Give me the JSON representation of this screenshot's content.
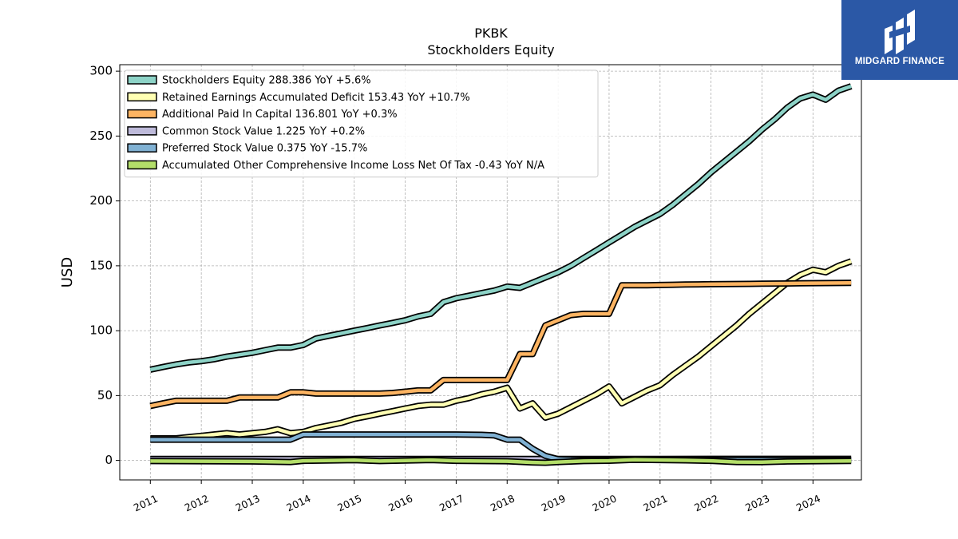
{
  "brand": {
    "name": "MIDGARD FINANCE"
  },
  "chart_data": {
    "type": "line",
    "title": "PKBK",
    "subtitle": "Stockholders  Equity",
    "ylabel": "USD",
    "xlabel": "",
    "ylim": [
      -15,
      305
    ],
    "xlim": [
      2010.4,
      2024.95
    ],
    "yticks": [
      0,
      50,
      100,
      150,
      200,
      250,
      300
    ],
    "xticks": [
      2011,
      2012,
      2013,
      2014,
      2015,
      2016,
      2017,
      2018,
      2019,
      2020,
      2021,
      2022,
      2023,
      2024
    ],
    "grid": true,
    "legend_position": "top-left",
    "series": [
      {
        "name": "Stockholders Equity  288.386 YoY +5.6%",
        "color": "#8dd3c7",
        "points": [
          [
            2011,
            70
          ],
          [
            2011.25,
            72
          ],
          [
            2011.5,
            74
          ],
          [
            2011.75,
            75.5
          ],
          [
            2012,
            76.5
          ],
          [
            2012.25,
            78
          ],
          [
            2012.5,
            80
          ],
          [
            2012.75,
            81.5
          ],
          [
            2013,
            83
          ],
          [
            2013.25,
            85
          ],
          [
            2013.5,
            87
          ],
          [
            2013.75,
            87
          ],
          [
            2014,
            89
          ],
          [
            2014.25,
            94
          ],
          [
            2014.5,
            96
          ],
          [
            2014.75,
            98
          ],
          [
            2015,
            100
          ],
          [
            2015.25,
            102
          ],
          [
            2015.5,
            104
          ],
          [
            2015.75,
            106
          ],
          [
            2016,
            108
          ],
          [
            2016.25,
            111
          ],
          [
            2016.5,
            113
          ],
          [
            2016.75,
            122
          ],
          [
            2017,
            125
          ],
          [
            2017.25,
            127
          ],
          [
            2017.5,
            129
          ],
          [
            2017.75,
            131
          ],
          [
            2018,
            134
          ],
          [
            2018.25,
            133
          ],
          [
            2018.5,
            137
          ],
          [
            2018.75,
            141
          ],
          [
            2019,
            145
          ],
          [
            2019.25,
            150
          ],
          [
            2019.5,
            156
          ],
          [
            2019.75,
            162
          ],
          [
            2020,
            168
          ],
          [
            2020.25,
            174
          ],
          [
            2020.5,
            180
          ],
          [
            2020.75,
            185
          ],
          [
            2021,
            190
          ],
          [
            2021.25,
            197
          ],
          [
            2021.5,
            205
          ],
          [
            2021.75,
            213
          ],
          [
            2022,
            222
          ],
          [
            2022.25,
            230
          ],
          [
            2022.5,
            238
          ],
          [
            2022.75,
            246
          ],
          [
            2023,
            255
          ],
          [
            2023.25,
            263
          ],
          [
            2023.5,
            272
          ],
          [
            2023.75,
            279
          ],
          [
            2024,
            282
          ],
          [
            2024.25,
            278
          ],
          [
            2024.5,
            285
          ],
          [
            2024.75,
            288.386
          ]
        ]
      },
      {
        "name": "Retained Earnings Accumulated Deficit  153.43 YoY +10.7%",
        "color": "#ffffb3",
        "points": [
          [
            2011,
            17
          ],
          [
            2011.25,
            17
          ],
          [
            2011.5,
            17
          ],
          [
            2011.75,
            18
          ],
          [
            2012,
            19
          ],
          [
            2012.25,
            20
          ],
          [
            2012.5,
            21
          ],
          [
            2012.75,
            20
          ],
          [
            2013,
            21
          ],
          [
            2013.25,
            22
          ],
          [
            2013.5,
            24
          ],
          [
            2013.75,
            21
          ],
          [
            2014,
            22
          ],
          [
            2014.25,
            25
          ],
          [
            2014.5,
            27
          ],
          [
            2014.75,
            29
          ],
          [
            2015,
            32
          ],
          [
            2015.25,
            34
          ],
          [
            2015.5,
            36
          ],
          [
            2015.75,
            38
          ],
          [
            2016,
            40
          ],
          [
            2016.25,
            42
          ],
          [
            2016.5,
            43
          ],
          [
            2016.75,
            43
          ],
          [
            2017,
            46
          ],
          [
            2017.25,
            48
          ],
          [
            2017.5,
            51
          ],
          [
            2017.75,
            53
          ],
          [
            2018,
            56
          ],
          [
            2018.25,
            40
          ],
          [
            2018.5,
            44
          ],
          [
            2018.75,
            33
          ],
          [
            2019,
            36
          ],
          [
            2019.25,
            41
          ],
          [
            2019.5,
            46
          ],
          [
            2019.75,
            51
          ],
          [
            2020,
            57
          ],
          [
            2020.25,
            44
          ],
          [
            2020.5,
            49
          ],
          [
            2020.75,
            54
          ],
          [
            2021,
            58
          ],
          [
            2021.25,
            66
          ],
          [
            2021.5,
            73
          ],
          [
            2021.75,
            80
          ],
          [
            2022,
            88
          ],
          [
            2022.25,
            96
          ],
          [
            2022.5,
            104
          ],
          [
            2022.75,
            113
          ],
          [
            2023,
            121
          ],
          [
            2023.25,
            129
          ],
          [
            2023.5,
            137
          ],
          [
            2023.75,
            143
          ],
          [
            2024,
            147
          ],
          [
            2024.25,
            145
          ],
          [
            2024.5,
            150
          ],
          [
            2024.75,
            153.43
          ]
        ]
      },
      {
        "name": "Additional Paid In Capital  136.801 YoY +0.3%",
        "color": "#fdb462",
        "points": [
          [
            2011,
            42
          ],
          [
            2011.25,
            44
          ],
          [
            2011.5,
            46
          ],
          [
            2011.75,
            46
          ],
          [
            2012,
            46
          ],
          [
            2012.25,
            46
          ],
          [
            2012.5,
            46
          ],
          [
            2012.75,
            48.5
          ],
          [
            2013,
            48.5
          ],
          [
            2013.25,
            48.5
          ],
          [
            2013.5,
            48.5
          ],
          [
            2013.75,
            52.5
          ],
          [
            2014,
            52.5
          ],
          [
            2014.25,
            51.5
          ],
          [
            2014.5,
            51.5
          ],
          [
            2014.75,
            51.5
          ],
          [
            2015,
            51.5
          ],
          [
            2015.25,
            51.5
          ],
          [
            2015.5,
            51.5
          ],
          [
            2015.75,
            52
          ],
          [
            2016,
            53
          ],
          [
            2016.25,
            54
          ],
          [
            2016.5,
            54
          ],
          [
            2016.75,
            62
          ],
          [
            2017,
            62
          ],
          [
            2017.25,
            62
          ],
          [
            2017.5,
            62
          ],
          [
            2017.75,
            62
          ],
          [
            2018,
            62
          ],
          [
            2018.25,
            82
          ],
          [
            2018.5,
            82
          ],
          [
            2018.75,
            104
          ],
          [
            2019,
            108
          ],
          [
            2019.25,
            112
          ],
          [
            2019.5,
            113
          ],
          [
            2019.75,
            113
          ],
          [
            2020,
            113
          ],
          [
            2020.25,
            135
          ],
          [
            2020.5,
            135
          ],
          [
            2020.75,
            135
          ],
          [
            2021,
            135.2
          ],
          [
            2021.25,
            135.4
          ],
          [
            2021.5,
            135.6
          ],
          [
            2021.75,
            135.7
          ],
          [
            2022,
            135.8
          ],
          [
            2022.25,
            135.9
          ],
          [
            2022.5,
            136
          ],
          [
            2022.75,
            136.1
          ],
          [
            2023,
            136.2
          ],
          [
            2023.25,
            136.3
          ],
          [
            2023.5,
            136.4
          ],
          [
            2023.75,
            136.5
          ],
          [
            2024,
            136.6
          ],
          [
            2024.25,
            136.7
          ],
          [
            2024.5,
            136.75
          ],
          [
            2024.75,
            136.801
          ]
        ]
      },
      {
        "name": "Common Stock Value  1.225 YoY +0.2%",
        "color": "#bebada",
        "points": [
          [
            2011,
            1.1
          ],
          [
            2012,
            1.1
          ],
          [
            2013,
            1.15
          ],
          [
            2014,
            1.15
          ],
          [
            2015,
            1.2
          ],
          [
            2016,
            1.2
          ],
          [
            2017,
            1.2
          ],
          [
            2018,
            1.2
          ],
          [
            2019,
            1.2
          ],
          [
            2020,
            1.2
          ],
          [
            2021,
            1.2
          ],
          [
            2022,
            1.22
          ],
          [
            2023,
            1.22
          ],
          [
            2024,
            1.22
          ],
          [
            2024.75,
            1.225
          ]
        ]
      },
      {
        "name": "Preferred Stock Value  0.375 YoY -15.7%",
        "color": "#80b1d3",
        "points": [
          [
            2011,
            16
          ],
          [
            2012,
            16
          ],
          [
            2013,
            16
          ],
          [
            2013.75,
            16
          ],
          [
            2014,
            20
          ],
          [
            2015,
            20
          ],
          [
            2016,
            20
          ],
          [
            2017,
            20
          ],
          [
            2017.5,
            19.8
          ],
          [
            2017.75,
            19.3
          ],
          [
            2018,
            16
          ],
          [
            2018.25,
            16
          ],
          [
            2018.5,
            9
          ],
          [
            2018.75,
            3.5
          ],
          [
            2019,
            1
          ],
          [
            2019.25,
            0.6
          ],
          [
            2020,
            0.5
          ],
          [
            2021,
            0.45
          ],
          [
            2022,
            0.42
          ],
          [
            2023,
            0.4
          ],
          [
            2024,
            0.38
          ],
          [
            2024.75,
            0.375
          ]
        ]
      },
      {
        "name": "Accumulated Other Comprehensive Income Loss Net Of Tax  -0.43 YoY N/A",
        "color": "#b3de69",
        "points": [
          [
            2011,
            -0.5
          ],
          [
            2012,
            -0.6
          ],
          [
            2013,
            -0.8
          ],
          [
            2013.75,
            -1.2
          ],
          [
            2014,
            -0.3
          ],
          [
            2015,
            0.2
          ],
          [
            2015.5,
            -0.5
          ],
          [
            2016,
            -0.1
          ],
          [
            2016.5,
            0.3
          ],
          [
            2017,
            -0.3
          ],
          [
            2017.5,
            -0.5
          ],
          [
            2018,
            -0.6
          ],
          [
            2018.5,
            -1.5
          ],
          [
            2018.75,
            -1.8
          ],
          [
            2019,
            -1.2
          ],
          [
            2019.5,
            -0.5
          ],
          [
            2020,
            -0.2
          ],
          [
            2020.5,
            0.5
          ],
          [
            2021,
            0.3
          ],
          [
            2021.5,
            0.1
          ],
          [
            2022,
            -0.3
          ],
          [
            2022.5,
            -1.2
          ],
          [
            2023,
            -1.3
          ],
          [
            2023.5,
            -0.8
          ],
          [
            2024,
            -0.6
          ],
          [
            2024.75,
            -0.43
          ]
        ]
      }
    ]
  }
}
